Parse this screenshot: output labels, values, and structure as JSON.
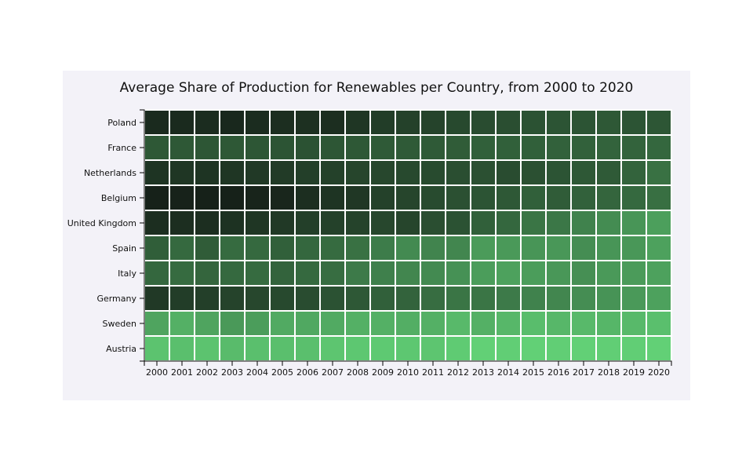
{
  "chart_data": {
    "type": "heatmap",
    "title": "Average Share of Production for Renewables per Country, from 2000 to 2020",
    "xlabel": "",
    "ylabel": "",
    "x": [
      "2000",
      "2001",
      "2002",
      "2003",
      "2004",
      "2005",
      "2006",
      "2007",
      "2008",
      "2009",
      "2010",
      "2011",
      "2012",
      "2013",
      "2014",
      "2015",
      "2016",
      "2017",
      "2018",
      "2019",
      "2020"
    ],
    "y": [
      "Poland",
      "France",
      "Netherlands",
      "Belgium",
      "United Kingdom",
      "Spain",
      "Italy",
      "Germany",
      "Sweden",
      "Austria"
    ],
    "values": [
      [
        0.1,
        0.1,
        0.11,
        0.09,
        0.11,
        0.12,
        0.13,
        0.12,
        0.16,
        0.2,
        0.22,
        0.23,
        0.26,
        0.28,
        0.29,
        0.31,
        0.32,
        0.32,
        0.34,
        0.32,
        0.33
      ],
      [
        0.34,
        0.34,
        0.33,
        0.34,
        0.33,
        0.32,
        0.31,
        0.33,
        0.34,
        0.35,
        0.35,
        0.35,
        0.36,
        0.38,
        0.38,
        0.38,
        0.39,
        0.39,
        0.4,
        0.4,
        0.42
      ],
      [
        0.15,
        0.16,
        0.15,
        0.16,
        0.18,
        0.19,
        0.21,
        0.22,
        0.24,
        0.25,
        0.26,
        0.27,
        0.29,
        0.3,
        0.28,
        0.3,
        0.32,
        0.34,
        0.35,
        0.4,
        0.47
      ],
      [
        0.05,
        0.06,
        0.05,
        0.05,
        0.07,
        0.08,
        0.12,
        0.15,
        0.17,
        0.22,
        0.24,
        0.27,
        0.3,
        0.32,
        0.34,
        0.38,
        0.36,
        0.39,
        0.41,
        0.43,
        0.46
      ],
      [
        0.12,
        0.12,
        0.12,
        0.14,
        0.16,
        0.18,
        0.21,
        0.22,
        0.23,
        0.25,
        0.24,
        0.29,
        0.31,
        0.38,
        0.42,
        0.49,
        0.5,
        0.56,
        0.61,
        0.66,
        0.71
      ],
      [
        0.37,
        0.43,
        0.36,
        0.44,
        0.43,
        0.38,
        0.42,
        0.44,
        0.47,
        0.53,
        0.6,
        0.57,
        0.58,
        0.69,
        0.68,
        0.66,
        0.67,
        0.62,
        0.66,
        0.67,
        0.72
      ],
      [
        0.42,
        0.44,
        0.41,
        0.43,
        0.44,
        0.4,
        0.43,
        0.45,
        0.52,
        0.55,
        0.58,
        0.6,
        0.64,
        0.7,
        0.72,
        0.7,
        0.67,
        0.63,
        0.68,
        0.69,
        0.72
      ],
      [
        0.18,
        0.2,
        0.21,
        0.23,
        0.25,
        0.26,
        0.28,
        0.31,
        0.34,
        0.38,
        0.4,
        0.45,
        0.49,
        0.49,
        0.52,
        0.56,
        0.58,
        0.62,
        0.65,
        0.68,
        0.72
      ],
      [
        0.74,
        0.8,
        0.74,
        0.68,
        0.7,
        0.77,
        0.76,
        0.77,
        0.8,
        0.8,
        0.79,
        0.8,
        0.85,
        0.8,
        0.84,
        0.87,
        0.84,
        0.85,
        0.83,
        0.85,
        0.88
      ],
      [
        0.9,
        0.88,
        0.9,
        0.86,
        0.88,
        0.88,
        0.88,
        0.91,
        0.92,
        0.93,
        0.92,
        0.91,
        0.94,
        0.97,
        0.96,
        0.97,
        0.96,
        0.97,
        0.96,
        0.96,
        0.97
      ]
    ],
    "color_scale": [
      "#121714",
      "#64d679"
    ]
  }
}
